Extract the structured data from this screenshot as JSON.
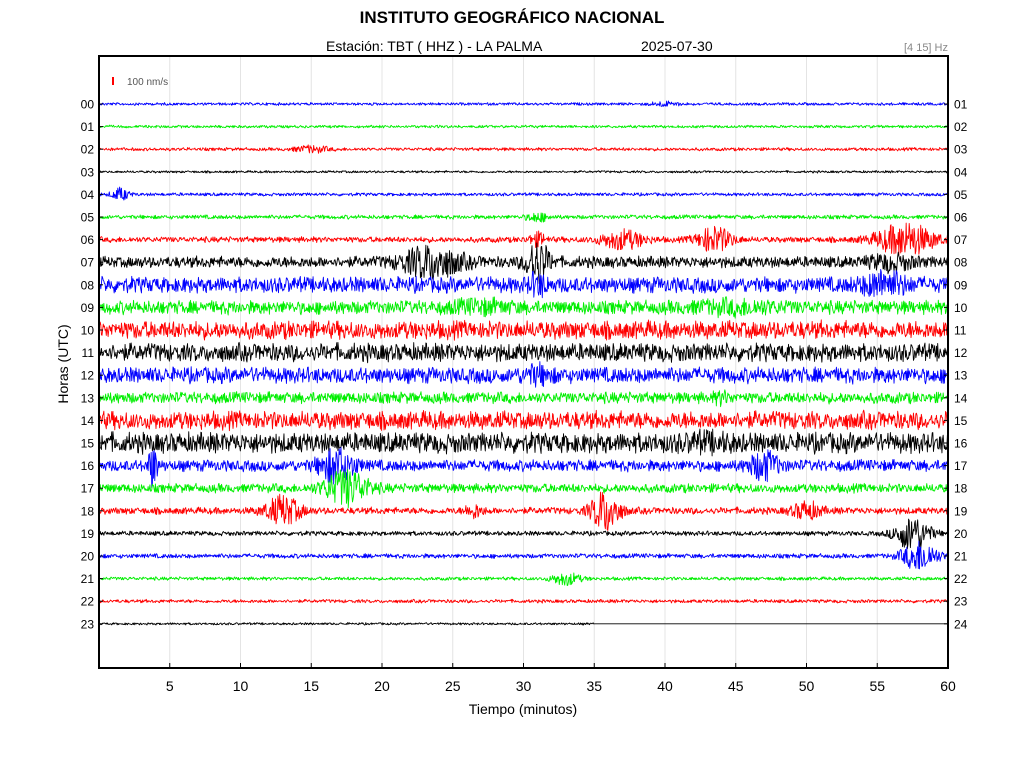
{
  "header": {
    "title": "INSTITUTO GEOGRÁFICO NACIONAL",
    "station": "Estación:  TBT ( HHZ ) - LA PALMA",
    "date": "2025-07-30",
    "band": "[4 15] Hz"
  },
  "chart_data": {
    "type": "line",
    "title": "INSTITUTO GEOGRÁFICO NACIONAL",
    "xlabel": "Tiempo (minutos)",
    "ylabel": "Horas (UTC)",
    "xlim": [
      0,
      60
    ],
    "x_ticks": [
      "5",
      "10",
      "15",
      "20",
      "25",
      "30",
      "35",
      "40",
      "45",
      "50",
      "55",
      "60"
    ],
    "left_ticks": [
      "00",
      "01",
      "02",
      "03",
      "04",
      "05",
      "06",
      "07",
      "08",
      "09",
      "10",
      "11",
      "12",
      "13",
      "14",
      "15",
      "16",
      "17",
      "18",
      "19",
      "20",
      "21",
      "22",
      "23"
    ],
    "right_ticks": [
      "01",
      "02",
      "03",
      "04",
      "05",
      "06",
      "07",
      "08",
      "09",
      "10",
      "11",
      "12",
      "13",
      "14",
      "15",
      "16",
      "17",
      "18",
      "19",
      "20",
      "21",
      "22",
      "23",
      "24"
    ],
    "scale_label": "100 nm/s",
    "grid": true,
    "line_colors": [
      "#0000ff",
      "#00ee00",
      "#ff0000",
      "#000000"
    ],
    "series": [
      {
        "hour": "00",
        "color": "#0000ff",
        "noise": 1.2,
        "events": [
          [
            40,
            2,
            1.0
          ]
        ]
      },
      {
        "hour": "01",
        "color": "#00ee00",
        "noise": 1.2,
        "events": []
      },
      {
        "hour": "02",
        "color": "#ff0000",
        "noise": 1.4,
        "events": [
          [
            15,
            3,
            1.2
          ]
        ]
      },
      {
        "hour": "03",
        "color": "#000000",
        "noise": 1.0,
        "events": []
      },
      {
        "hour": "04",
        "color": "#0000ff",
        "noise": 1.4,
        "events": [
          [
            1.5,
            6,
            0.6
          ]
        ]
      },
      {
        "hour": "05",
        "color": "#00ee00",
        "noise": 1.8,
        "events": [
          [
            31,
            4,
            0.8
          ]
        ]
      },
      {
        "hour": "06",
        "color": "#ff0000",
        "noise": 2.5,
        "events": [
          [
            31,
            6,
            0.6
          ],
          [
            37,
            9,
            1.5
          ],
          [
            43.5,
            12,
            1.2
          ],
          [
            57,
            16,
            2.0
          ]
        ]
      },
      {
        "hour": "07",
        "color": "#000000",
        "noise": 5,
        "events": [
          [
            23.5,
            15,
            2.0
          ],
          [
            31,
            20,
            0.8
          ],
          [
            56,
            6,
            1.5
          ]
        ]
      },
      {
        "hour": "08",
        "color": "#0000ff",
        "noise": 7,
        "events": [
          [
            31,
            8,
            0.6
          ],
          [
            55.5,
            10,
            1.5
          ]
        ]
      },
      {
        "hour": "09",
        "color": "#00ee00",
        "noise": 6,
        "events": [
          [
            27,
            4,
            2.0
          ],
          [
            45,
            4,
            3.0
          ]
        ]
      },
      {
        "hour": "10",
        "color": "#ff0000",
        "noise": 8,
        "events": []
      },
      {
        "hour": "11",
        "color": "#000000",
        "noise": 8,
        "events": []
      },
      {
        "hour": "12",
        "color": "#0000ff",
        "noise": 7,
        "events": [
          [
            31,
            6,
            1.0
          ]
        ]
      },
      {
        "hour": "13",
        "color": "#00ee00",
        "noise": 5,
        "events": [
          [
            44,
            4,
            0.5
          ]
        ]
      },
      {
        "hour": "14",
        "color": "#ff0000",
        "noise": 8,
        "events": []
      },
      {
        "hour": "15",
        "color": "#000000",
        "noise": 9,
        "events": [
          [
            43,
            4,
            1.5
          ]
        ]
      },
      {
        "hour": "16",
        "color": "#0000ff",
        "noise": 5,
        "events": [
          [
            3.8,
            20,
            0.3
          ],
          [
            16.8,
            16,
            1.2
          ],
          [
            47,
            13,
            1.0
          ]
        ]
      },
      {
        "hour": "17",
        "color": "#00ee00",
        "noise": 4,
        "events": [
          [
            17.5,
            17,
            1.5
          ]
        ]
      },
      {
        "hour": "18",
        "color": "#ff0000",
        "noise": 3,
        "events": [
          [
            13,
            14,
            1.2
          ],
          [
            26.5,
            6,
            0.6
          ],
          [
            35.8,
            20,
            1.0
          ],
          [
            50,
            8,
            1.0
          ]
        ]
      },
      {
        "hour": "19",
        "color": "#000000",
        "noise": 2,
        "events": [
          [
            57.5,
            17,
            1.2
          ]
        ]
      },
      {
        "hour": "20",
        "color": "#0000ff",
        "noise": 2,
        "events": [
          [
            58,
            15,
            1.2
          ]
        ]
      },
      {
        "hour": "21",
        "color": "#00ee00",
        "noise": 1.5,
        "events": [
          [
            33,
            6,
            1.0
          ]
        ]
      },
      {
        "hour": "22",
        "color": "#ff0000",
        "noise": 1.5,
        "events": []
      },
      {
        "hour": "23",
        "color": "#000000",
        "noise": 1.0,
        "events": [],
        "end_minute": 35
      }
    ]
  }
}
